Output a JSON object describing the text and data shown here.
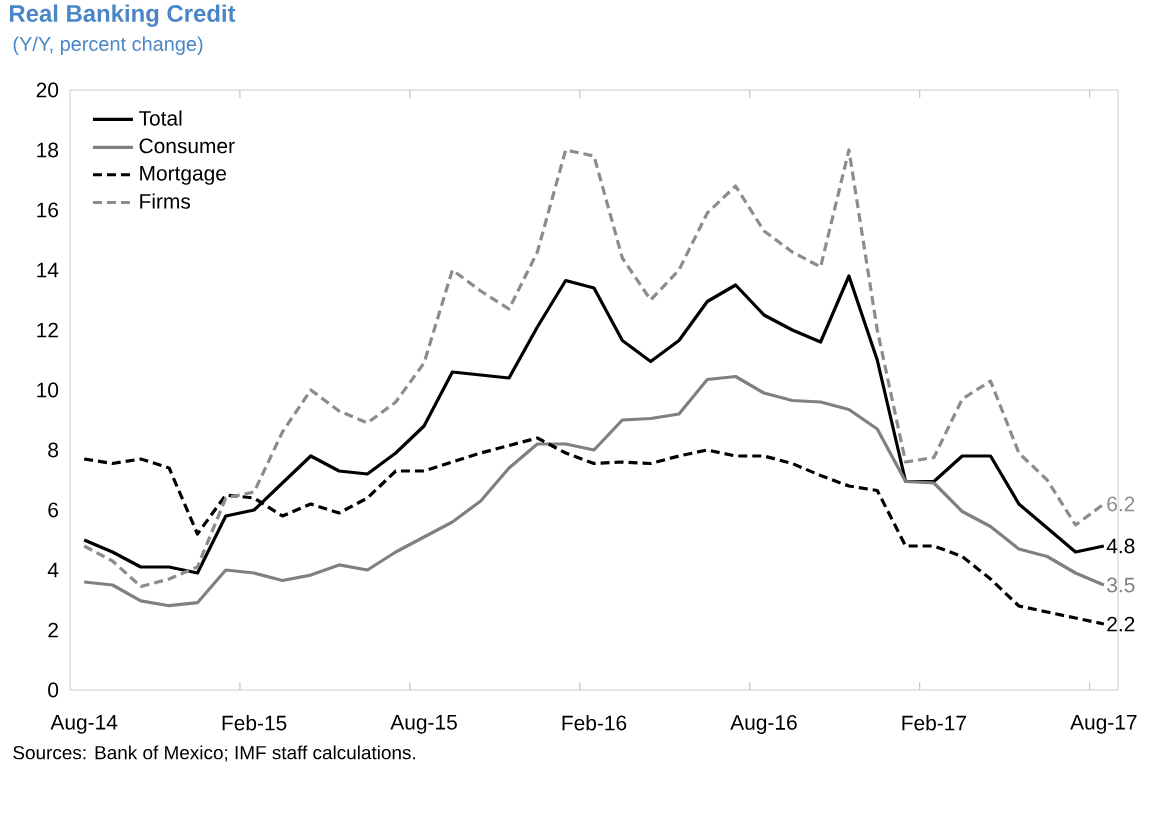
{
  "chart_data": {
    "type": "line",
    "title": "Real Banking Credit",
    "subtitle": "(Y/Y, percent change)",
    "categories": [
      "Aug-14",
      null,
      null,
      null,
      null,
      null,
      "Feb-15",
      null,
      null,
      null,
      null,
      null,
      "Aug-15",
      null,
      null,
      null,
      null,
      null,
      "Feb-16",
      null,
      null,
      null,
      null,
      null,
      "Aug-16",
      null,
      null,
      null,
      null,
      null,
      "Feb-17",
      null,
      null,
      null,
      null,
      null,
      "Aug-17"
    ],
    "series": [
      {
        "name": "Total",
        "color": "#000000",
        "line_style": "solid",
        "values": [
          5.0,
          4.6,
          4.1,
          4.1,
          3.9,
          5.8,
          6.0,
          6.9,
          7.8,
          7.3,
          7.2,
          7.9,
          8.8,
          10.6,
          10.5,
          10.4,
          12.1,
          13.65,
          13.4,
          11.65,
          10.95,
          11.65,
          12.95,
          13.5,
          12.5,
          12.0,
          11.6,
          13.8,
          11.0,
          6.95,
          6.95,
          7.8,
          7.8,
          6.2,
          5.4,
          4.6,
          4.8
        ],
        "value_labels": [
          null,
          null,
          null,
          null,
          null,
          null,
          null,
          null,
          null,
          null,
          null,
          null,
          null,
          null,
          null,
          null,
          null,
          null,
          null,
          null,
          null,
          null,
          null,
          null,
          null,
          null,
          null,
          null,
          null,
          null,
          null,
          null,
          null,
          null,
          null,
          null,
          "4.8"
        ]
      },
      {
        "name": "Consumer",
        "color": "#808080",
        "line_style": "solid",
        "values": [
          3.6,
          3.5,
          2.97,
          2.81,
          2.91,
          4.0,
          3.9,
          3.65,
          3.83,
          4.17,
          4.0,
          4.6,
          5.1,
          5.6,
          6.3,
          7.4,
          8.2,
          8.2,
          8.0,
          9.0,
          9.05,
          9.2,
          10.35,
          10.45,
          9.9,
          9.65,
          9.6,
          9.35,
          8.7,
          6.95,
          6.9,
          5.95,
          5.45,
          4.7,
          4.45,
          3.9,
          3.5
        ],
        "value_labels": [
          null,
          null,
          null,
          null,
          null,
          null,
          null,
          null,
          null,
          null,
          null,
          null,
          null,
          null,
          null,
          null,
          null,
          null,
          null,
          null,
          null,
          null,
          null,
          null,
          null,
          null,
          null,
          null,
          null,
          null,
          null,
          null,
          null,
          null,
          null,
          null,
          "3.5"
        ]
      },
      {
        "name": "Mortgage",
        "color": "#000000",
        "line_style": "dashed",
        "values": [
          7.7,
          7.55,
          7.7,
          7.4,
          5.2,
          6.5,
          6.4,
          5.8,
          6.2,
          5.9,
          6.4,
          7.3,
          7.3,
          7.6,
          7.9,
          8.15,
          8.4,
          7.9,
          7.55,
          7.6,
          7.55,
          7.8,
          8.0,
          7.8,
          7.8,
          7.55,
          7.15,
          6.8,
          6.65,
          4.8,
          4.8,
          4.45,
          3.7,
          2.8,
          2.6,
          2.4,
          2.2
        ],
        "value_labels": [
          null,
          null,
          null,
          null,
          null,
          null,
          null,
          null,
          null,
          null,
          null,
          null,
          null,
          null,
          null,
          null,
          null,
          null,
          null,
          null,
          null,
          null,
          null,
          null,
          null,
          null,
          null,
          null,
          null,
          null,
          null,
          null,
          null,
          null,
          null,
          null,
          "2.2"
        ]
      },
      {
        "name": "Firms",
        "color": "#8c8c8c",
        "line_style": "dashed",
        "values": [
          4.8,
          4.3,
          3.45,
          3.7,
          4.1,
          6.4,
          6.6,
          8.6,
          10.0,
          9.3,
          8.9,
          9.6,
          10.9,
          14.0,
          13.3,
          12.7,
          14.6,
          18.0,
          17.8,
          14.4,
          13.0,
          14.0,
          15.9,
          16.8,
          15.3,
          14.6,
          14.1,
          18.0,
          12.0,
          7.6,
          7.75,
          9.7,
          10.3,
          7.9,
          7.0,
          5.5,
          6.2
        ],
        "value_labels": [
          null,
          null,
          null,
          null,
          null,
          null,
          null,
          null,
          null,
          null,
          null,
          null,
          null,
          null,
          null,
          null,
          null,
          null,
          null,
          null,
          null,
          null,
          null,
          null,
          null,
          null,
          null,
          null,
          null,
          null,
          null,
          null,
          null,
          null,
          null,
          null,
          "6.2"
        ]
      }
    ],
    "ylim": [
      0,
      20
    ],
    "yticks": [
      0,
      2,
      4,
      6,
      8,
      10,
      12,
      14,
      16,
      18,
      20
    ],
    "legend": "top left",
    "annotations": [
      "Sources: Bank of Mexico; IMF staff calculations."
    ]
  }
}
